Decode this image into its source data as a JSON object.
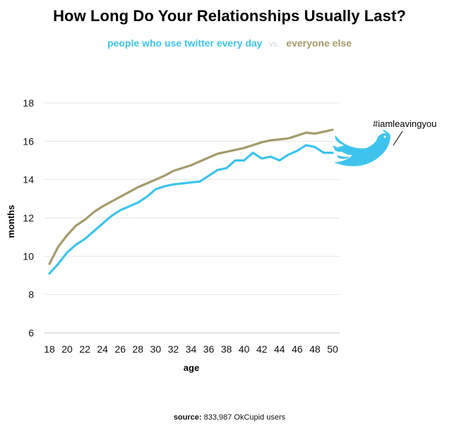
{
  "chart_data": {
    "type": "line",
    "title": "How Long Do Your Relationships Usually Last?",
    "xlabel": "age",
    "ylabel": "months",
    "xlim": [
      18,
      50
    ],
    "ylim": [
      6,
      18
    ],
    "x_ticks": [
      18,
      20,
      22,
      24,
      26,
      28,
      30,
      32,
      34,
      36,
      38,
      40,
      42,
      44,
      46,
      48,
      50
    ],
    "y_ticks": [
      6,
      8,
      10,
      12,
      14,
      16,
      18
    ],
    "grid": "horizontal",
    "legend": "subtitle",
    "x": [
      18,
      19,
      20,
      21,
      22,
      23,
      24,
      25,
      26,
      27,
      28,
      29,
      30,
      31,
      32,
      33,
      34,
      35,
      36,
      37,
      38,
      39,
      40,
      41,
      42,
      43,
      44,
      45,
      46,
      47,
      48,
      49,
      50
    ],
    "series": [
      {
        "name": "people who use twitter every day",
        "color": "#3ec4ec",
        "values": [
          9.1,
          9.6,
          10.2,
          10.6,
          10.9,
          11.3,
          11.7,
          12.1,
          12.4,
          12.6,
          12.8,
          13.1,
          13.5,
          13.65,
          13.75,
          13.8,
          13.85,
          13.9,
          14.2,
          14.5,
          14.6,
          15.0,
          15.0,
          15.4,
          15.1,
          15.2,
          15.0,
          15.3,
          15.5,
          15.8,
          15.7,
          15.4,
          15.4
        ]
      },
      {
        "name": "everyone else",
        "color": "#a39b6c",
        "values": [
          9.6,
          10.5,
          11.1,
          11.6,
          11.9,
          12.3,
          12.6,
          12.85,
          13.1,
          13.35,
          13.6,
          13.8,
          14.0,
          14.2,
          14.45,
          14.6,
          14.75,
          14.95,
          15.15,
          15.35,
          15.45,
          15.55,
          15.65,
          15.8,
          15.95,
          16.05,
          16.1,
          16.15,
          16.3,
          16.45,
          16.4,
          16.5,
          16.6
        ]
      }
    ],
    "annotation": "#iamleavingyou",
    "vs_label": "vs."
  },
  "source": {
    "label": "source:",
    "text": "833,987 OkCupid users"
  },
  "decor": {
    "icon": "twitter-bird-icon",
    "bird_color": "#3ec4ec"
  }
}
